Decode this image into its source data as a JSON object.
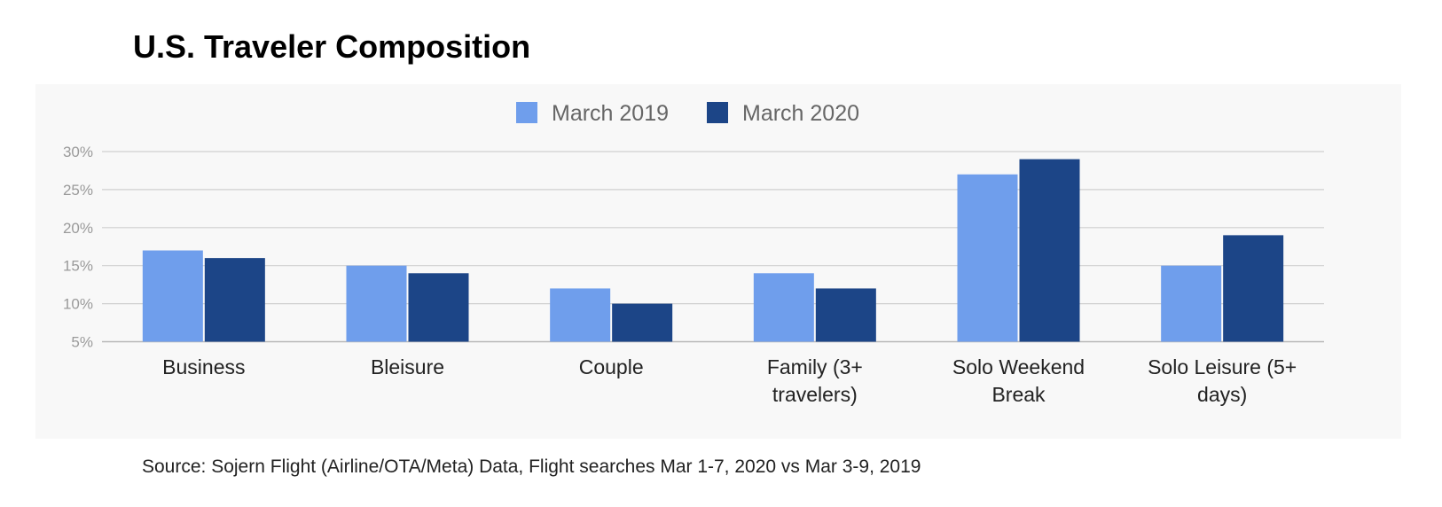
{
  "title": "U.S. Traveler Composition",
  "source": "Source: Sojern Flight (Airline/OTA/Meta) Data, Flight searches Mar 1-7, 2020 vs Mar 3-9, 2019",
  "chart_data": {
    "type": "bar",
    "title": "U.S. Traveler Composition",
    "categories": [
      [
        "Business"
      ],
      [
        "Bleisure"
      ],
      [
        "Couple"
      ],
      [
        "Family (3+",
        "travelers)"
      ],
      [
        "Solo Weekend",
        "Break"
      ],
      [
        "Solo Leisure (5+",
        "days)"
      ]
    ],
    "series": [
      {
        "name": "March 2019",
        "color": "#6f9eec",
        "values": [
          17,
          15,
          12,
          14,
          27,
          15
        ]
      },
      {
        "name": "March 2020",
        "color": "#1c4587",
        "values": [
          16,
          14,
          10,
          12,
          29,
          19
        ]
      }
    ],
    "ylim": [
      5,
      30
    ],
    "yticks": [
      "5%",
      "10%",
      "15%",
      "20%",
      "25%",
      "30%"
    ],
    "ytick_values": [
      5,
      10,
      15,
      20,
      25,
      30
    ],
    "grid": true,
    "legend_position": "top-center"
  }
}
